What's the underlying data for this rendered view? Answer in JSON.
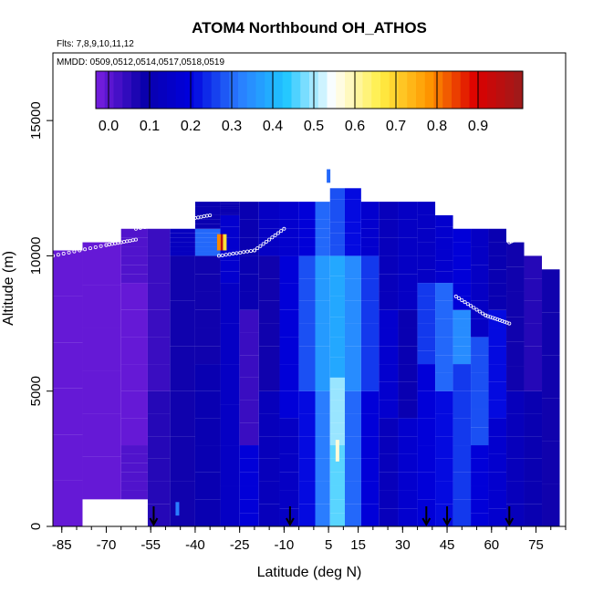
{
  "chart_data": {
    "type": "heatmap",
    "title": "ATOM4 Northbound OH_ATHOS",
    "subtitle_flights": "Flts: 7,8,9,10,11,12",
    "subtitle_dates": "MMDD: 0509,0512,0514,0517,0518,0519",
    "xlabel": "Latitude (deg N)",
    "ylabel": "Altitude (m)",
    "xlim": [
      -88,
      85
    ],
    "ylim": [
      0,
      17500
    ],
    "x_ticks": [
      -85,
      -70,
      -55,
      -40,
      -25,
      -10,
      5,
      15,
      30,
      45,
      60,
      75
    ],
    "y_ticks": [
      0,
      5000,
      10000,
      15000
    ],
    "colorbar": {
      "min": 0.0,
      "max": 0.95,
      "ticks": [
        0.0,
        0.1,
        0.2,
        0.3,
        0.4,
        0.5,
        0.6,
        0.7,
        0.8,
        0.9
      ],
      "tick_labels": [
        "0.0",
        "0.1",
        "0.2",
        "0.3",
        "0.4",
        "0.5",
        "0.6",
        "0.7",
        "0.8",
        "0.9"
      ],
      "colors": [
        "#7a1fe0",
        "#0a00aa",
        "#0000dd",
        "#2a7bff",
        "#1ec6ff",
        "#ffffff",
        "#ffee44",
        "#ff9900",
        "#dd0000",
        "#9b1c1c"
      ]
    },
    "profiles": [
      {
        "lat": -86,
        "bottom": 0,
        "top": 10200,
        "segments": [
          [
            0,
            10200,
            0.02
          ]
        ]
      },
      {
        "lat": -70,
        "bottom": 1000,
        "top": 10500,
        "segments": [
          [
            1000,
            10500,
            0.02
          ]
        ]
      },
      {
        "lat": -60,
        "bottom": 1000,
        "top": 11000,
        "segments": [
          [
            1000,
            3000,
            0.04
          ],
          [
            3000,
            9000,
            0.02
          ],
          [
            9000,
            11000,
            0.04
          ]
        ]
      },
      {
        "lat": -52,
        "bottom": 0,
        "top": 11000,
        "segments": [
          [
            0,
            5000,
            0.08
          ],
          [
            5000,
            11000,
            0.06
          ]
        ]
      },
      {
        "lat": -45,
        "bottom": 0,
        "top": 11000,
        "segments": [
          [
            0,
            10000,
            0.1
          ],
          [
            10000,
            11000,
            0.15
          ]
        ]
      },
      {
        "lat": -35,
        "bottom": 0,
        "top": 12000,
        "segments": [
          [
            0,
            6000,
            0.12
          ],
          [
            6000,
            10000,
            0.1
          ],
          [
            10000,
            11000,
            0.3
          ],
          [
            11000,
            12000,
            0.12
          ]
        ]
      },
      {
        "lat": -28,
        "bottom": 0,
        "top": 12000,
        "segments": [
          [
            0,
            9000,
            0.16
          ],
          [
            9000,
            11500,
            0.18
          ],
          [
            11500,
            12000,
            0.12
          ]
        ]
      },
      {
        "lat": -22,
        "bottom": 0,
        "top": 12000,
        "segments": [
          [
            0,
            3000,
            0.2
          ],
          [
            3000,
            8000,
            0.06
          ],
          [
            8000,
            12000,
            0.12
          ]
        ]
      },
      {
        "lat": -15,
        "bottom": 0,
        "top": 12000,
        "segments": [
          [
            0,
            5000,
            0.14
          ],
          [
            5000,
            10000,
            0.1
          ],
          [
            10000,
            12000,
            0.16
          ]
        ]
      },
      {
        "lat": -8,
        "bottom": 0,
        "top": 12000,
        "segments": [
          [
            0,
            4000,
            0.16
          ],
          [
            4000,
            10000,
            0.2
          ],
          [
            10000,
            12000,
            0.18
          ]
        ]
      },
      {
        "lat": -2,
        "bottom": 0,
        "top": 12000,
        "segments": [
          [
            0,
            5000,
            0.22
          ],
          [
            5000,
            10000,
            0.28
          ],
          [
            10000,
            12000,
            0.2
          ]
        ]
      },
      {
        "lat": 3,
        "bottom": 0,
        "top": 12000,
        "segments": [
          [
            0,
            5000,
            0.32
          ],
          [
            5000,
            10000,
            0.36
          ],
          [
            10000,
            12000,
            0.3
          ]
        ]
      },
      {
        "lat": 8,
        "bottom": 0,
        "top": 12500,
        "segments": [
          [
            0,
            3000,
            0.45
          ],
          [
            3000,
            5500,
            0.48
          ],
          [
            5500,
            10000,
            0.38
          ],
          [
            10000,
            12500,
            0.28
          ]
        ]
      },
      {
        "lat": 13,
        "bottom": 0,
        "top": 12500,
        "segments": [
          [
            0,
            5000,
            0.3
          ],
          [
            5000,
            10000,
            0.34
          ],
          [
            10000,
            12500,
            0.22
          ]
        ]
      },
      {
        "lat": 19,
        "bottom": 0,
        "top": 12000,
        "segments": [
          [
            0,
            5000,
            0.2
          ],
          [
            5000,
            10000,
            0.26
          ],
          [
            10000,
            12000,
            0.18
          ]
        ]
      },
      {
        "lat": 25,
        "bottom": 0,
        "top": 12000,
        "segments": [
          [
            0,
            4000,
            0.14
          ],
          [
            4000,
            8000,
            0.18
          ],
          [
            8000,
            12000,
            0.14
          ]
        ]
      },
      {
        "lat": 32,
        "bottom": 0,
        "top": 12000,
        "segments": [
          [
            0,
            4000,
            0.18
          ],
          [
            4000,
            8000,
            0.12
          ],
          [
            8000,
            12000,
            0.16
          ]
        ]
      },
      {
        "lat": 38,
        "bottom": 0,
        "top": 12000,
        "segments": [
          [
            0,
            6000,
            0.2
          ],
          [
            6000,
            9000,
            0.26
          ],
          [
            9000,
            12000,
            0.16
          ]
        ]
      },
      {
        "lat": 44,
        "bottom": 0,
        "top": 11500,
        "segments": [
          [
            0,
            5000,
            0.22
          ],
          [
            5000,
            9000,
            0.3
          ],
          [
            9000,
            11500,
            0.18
          ]
        ]
      },
      {
        "lat": 50,
        "bottom": 0,
        "top": 11000,
        "segments": [
          [
            0,
            6000,
            0.26
          ],
          [
            6000,
            8000,
            0.34
          ],
          [
            8000,
            11000,
            0.2
          ]
        ]
      },
      {
        "lat": 56,
        "bottom": 0,
        "top": 11000,
        "segments": [
          [
            0,
            3000,
            0.2
          ],
          [
            3000,
            7000,
            0.28
          ],
          [
            7000,
            11000,
            0.16
          ]
        ]
      },
      {
        "lat": 62,
        "bottom": 0,
        "top": 11000,
        "segments": [
          [
            0,
            4000,
            0.18
          ],
          [
            4000,
            8000,
            0.22
          ],
          [
            8000,
            11000,
            0.12
          ]
        ]
      },
      {
        "lat": 68,
        "bottom": 0,
        "top": 10500,
        "segments": [
          [
            0,
            5000,
            0.14
          ],
          [
            5000,
            10500,
            0.1
          ]
        ]
      },
      {
        "lat": 74,
        "bottom": 0,
        "top": 10000,
        "segments": [
          [
            0,
            5000,
            0.12
          ],
          [
            5000,
            10000,
            0.08
          ]
        ]
      },
      {
        "lat": 80,
        "bottom": 0,
        "top": 9500,
        "segments": [
          [
            0,
            9500,
            0.1
          ]
        ]
      }
    ],
    "hot_spots": [
      {
        "lat": -31,
        "alt_low": 10200,
        "alt_high": 10800,
        "value": 0.9
      },
      {
        "lat": -30,
        "alt_low": 10200,
        "alt_high": 10800,
        "value": 0.65
      },
      {
        "lat": -32,
        "alt_low": 10200,
        "alt_high": 10800,
        "value": 0.75
      },
      {
        "lat": -46,
        "alt_low": 400,
        "alt_high": 900,
        "value": 0.32
      },
      {
        "lat": 8,
        "alt_low": 2400,
        "alt_high": 3200,
        "value": 0.55
      },
      {
        "lat": 5,
        "alt_low": 12700,
        "alt_high": 13200,
        "value": 0.3
      }
    ],
    "flight_track_segments": [
      [
        [
          -60,
          11000
        ],
        [
          -45,
          11300
        ],
        [
          -35,
          11500
        ]
      ],
      [
        [
          -32,
          10000
        ],
        [
          -20,
          10200
        ],
        [
          -10,
          11000
        ]
      ],
      [
        [
          48,
          8500
        ],
        [
          58,
          7800
        ],
        [
          66,
          7500
        ]
      ],
      [
        [
          -88,
          10000
        ],
        [
          -70,
          10400
        ],
        [
          -60,
          10600
        ]
      ],
      [
        [
          66,
          10500
        ],
        [
          72,
          10800
        ],
        [
          80,
          10600
        ]
      ]
    ],
    "arrows_lat": [
      -54,
      -8,
      38,
      45,
      66
    ]
  }
}
